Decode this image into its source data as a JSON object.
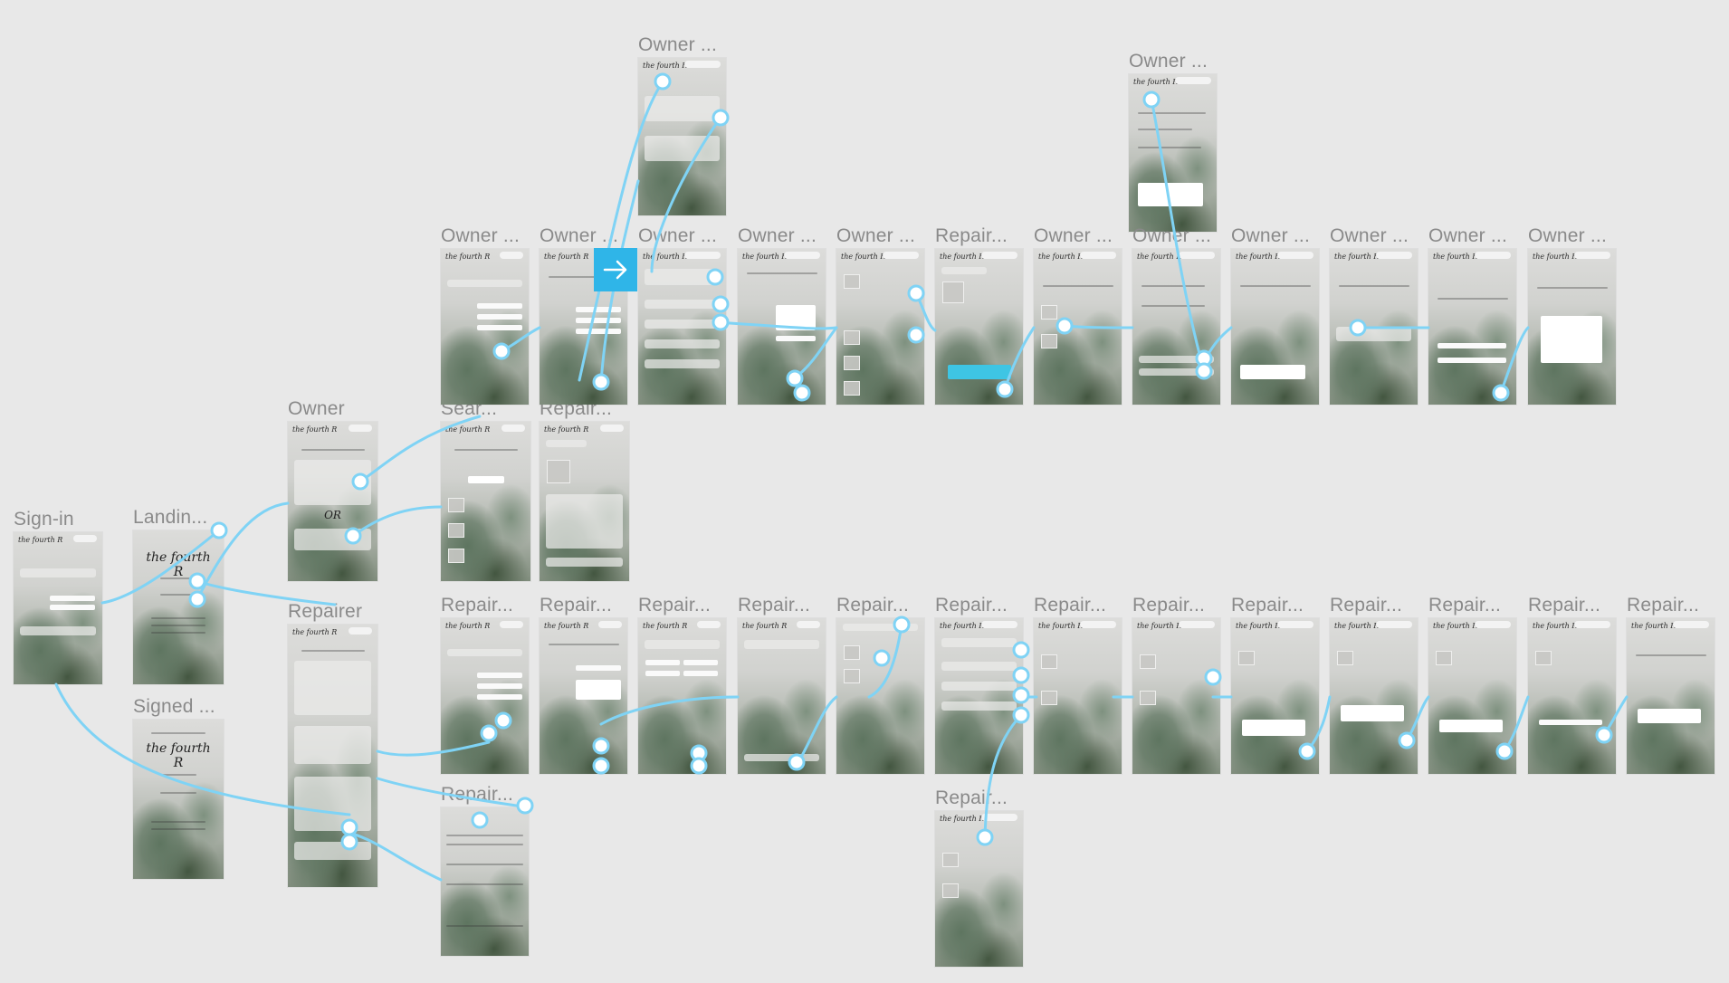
{
  "app": {
    "logo_text": "the fourth R",
    "big_logo_text": "the fourth R",
    "accent_color": "#7fd3f5",
    "selection_color": "#2fb5e8"
  },
  "frames": {
    "sign_in": "Sign-in",
    "landing": "Landin...",
    "signed": "Signed ...",
    "owner": "Owner",
    "repairer": "Repairer",
    "search": "Sear...",
    "repair_row2": "Repair...",
    "owner_top1": "Owner ...",
    "owner_top2": "Owner ...",
    "owner_r1": "Owner ...",
    "owner_r2": "Owner ...",
    "owner_r3": "Owner ...",
    "owner_r4": "Owner ...",
    "owner_r5": "Owner ...",
    "repair_r6": "Repair...",
    "owner_r7": "Owner ...",
    "owner_r8": "Owner ...",
    "owner_r9": "Owner ...",
    "owner_r10": "Owner ...",
    "owner_r11": "Owner ...",
    "owner_r12": "Owner ...",
    "repair_b1": "Repair...",
    "repair_b2": "Repair...",
    "repair_b3": "Repair...",
    "repair_b4": "Repair...",
    "repair_b5": "Repair...",
    "repair_b6": "Repair...",
    "repair_b7": "Repair...",
    "repair_b8": "Repair...",
    "repair_b9": "Repair...",
    "repair_b10": "Repair...",
    "repair_b11": "Repair...",
    "repair_b12": "Repair...",
    "repair_b13": "Repair...",
    "repair_faq": "Repair...",
    "repair_fb": "Repair..."
  },
  "labels": {
    "or_text": "OR"
  },
  "icons": {
    "play_arrow": "arrow-right-icon"
  }
}
